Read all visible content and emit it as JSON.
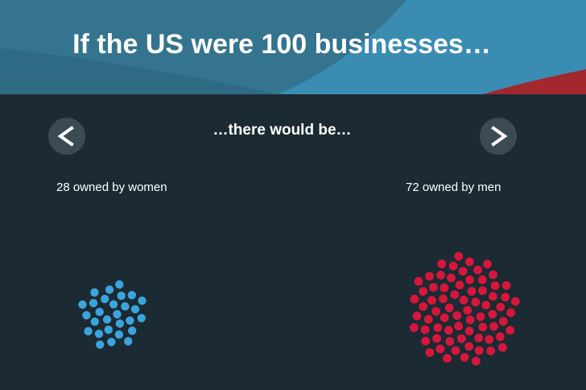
{
  "header": {
    "title": "If the US were 100 businesses…",
    "colors": {
      "blue": "#3a8cb2",
      "shade": "#34748f",
      "red": "#a3272e"
    }
  },
  "nav": {
    "prev_symbol": "<",
    "next_symbol": ">",
    "prev_icon": "chevron-left-icon",
    "next_icon": "chevron-right-icon"
  },
  "subtitle": "…there would be…",
  "groups": [
    {
      "label": "28 owned by women",
      "count": 28,
      "color": "#3aa5dc"
    },
    {
      "label": "72 owned by men",
      "count": 72,
      "color": "#d6173b"
    }
  ]
}
